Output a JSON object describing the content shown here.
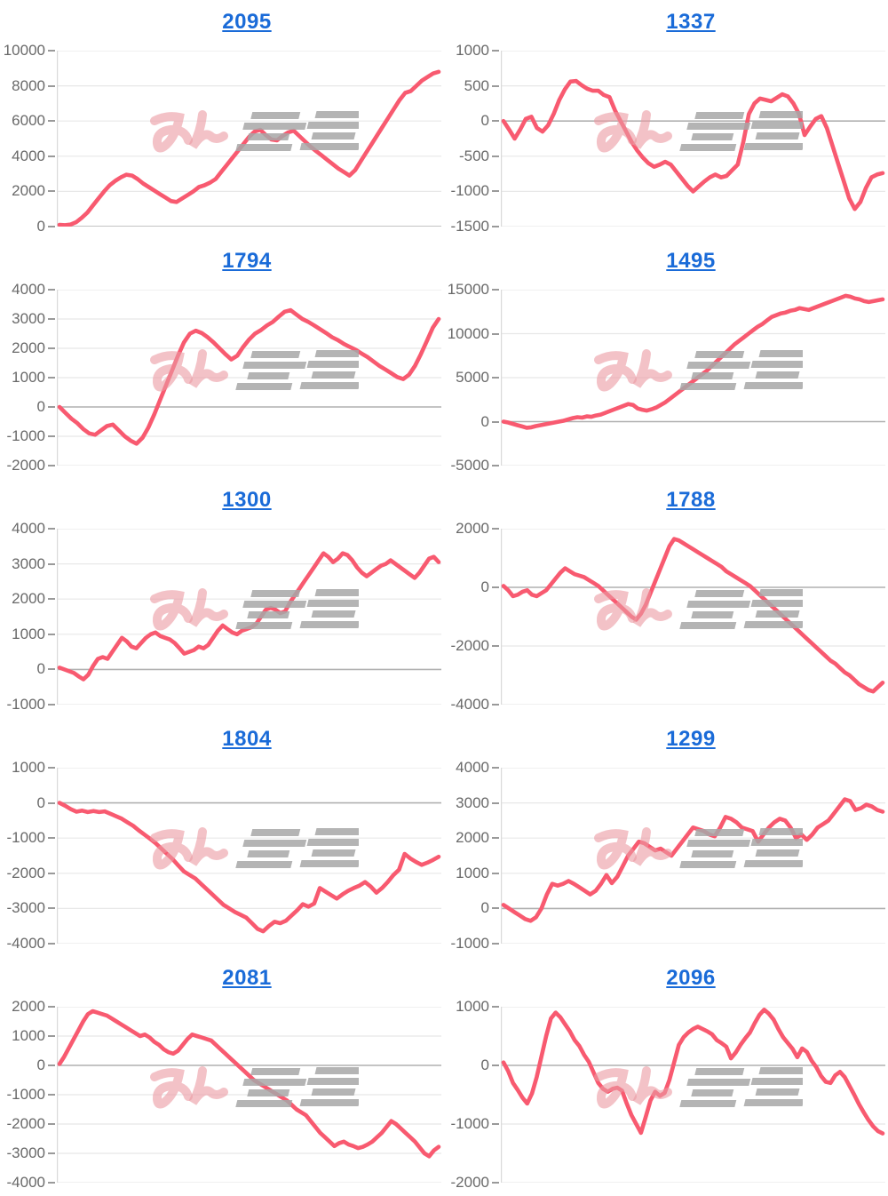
{
  "page": {
    "background": "#ffffff"
  },
  "watermark": {
    "text": "みんレポ",
    "pink": "#eb9aa1",
    "gray": "#a7a7a7"
  },
  "colors": {
    "line": "#f85a70",
    "grid_line": "#e8e8e8",
    "zero_line": "#b0b0b0",
    "axis_line": "#d9d9d9",
    "tick": "#9a9a9a",
    "label": "#696969",
    "title_link": "#1a6bd8"
  },
  "chart_data": [
    {
      "type": "line",
      "title": "2095",
      "xlabel": "",
      "ylabel": "",
      "ylim": [
        0,
        10000
      ],
      "yticks": [
        10000,
        8000,
        6000,
        4000,
        2000,
        0
      ],
      "grid": true,
      "legend": "none",
      "values": [
        100,
        80,
        120,
        250,
        500,
        800,
        1200,
        1600,
        2000,
        2350,
        2600,
        2800,
        2950,
        2900,
        2700,
        2450,
        2250,
        2050,
        1850,
        1650,
        1450,
        1400,
        1600,
        1800,
        2000,
        2250,
        2350,
        2500,
        2700,
        3100,
        3500,
        3900,
        4300,
        4700,
        5100,
        5400,
        5500,
        5200,
        4950,
        4900,
        5150,
        5350,
        5450,
        5150,
        4850,
        4550,
        4300,
        4050,
        3800,
        3550,
        3300,
        3100,
        2900,
        3200,
        3700,
        4200,
        4700,
        5200,
        5700,
        6200,
        6700,
        7200,
        7600,
        7700,
        8000,
        8300,
        8500,
        8700,
        8800
      ]
    },
    {
      "type": "line",
      "title": "1337",
      "xlabel": "",
      "ylabel": "",
      "ylim": [
        -1500,
        1000
      ],
      "yticks": [
        1000,
        500,
        0,
        -500,
        -1000,
        -1500
      ],
      "grid": true,
      "legend": "none",
      "values": [
        0,
        -120,
        -250,
        -120,
        30,
        60,
        -100,
        -150,
        -60,
        100,
        300,
        450,
        560,
        570,
        510,
        460,
        430,
        430,
        370,
        340,
        150,
        0,
        -150,
        -300,
        -420,
        -520,
        -600,
        -650,
        -620,
        -580,
        -620,
        -720,
        -820,
        -920,
        -1000,
        -930,
        -860,
        -800,
        -760,
        -800,
        -780,
        -700,
        -620,
        -300,
        100,
        250,
        320,
        300,
        280,
        330,
        380,
        350,
        250,
        100,
        -200,
        -80,
        30,
        70,
        -100,
        -350,
        -600,
        -850,
        -1100,
        -1250,
        -1150,
        -950,
        -800,
        -760,
        -740
      ]
    },
    {
      "type": "line",
      "title": "1794",
      "xlabel": "",
      "ylabel": "",
      "ylim": [
        -2000,
        4000
      ],
      "yticks": [
        4000,
        3000,
        2000,
        1000,
        0,
        -1000,
        -2000
      ],
      "grid": true,
      "legend": "none",
      "values": [
        0,
        -200,
        -400,
        -550,
        -750,
        -900,
        -950,
        -800,
        -650,
        -600,
        -800,
        -1000,
        -1150,
        -1250,
        -1050,
        -700,
        -250,
        250,
        750,
        1250,
        1750,
        2200,
        2500,
        2600,
        2520,
        2380,
        2200,
        2000,
        1800,
        1620,
        1750,
        2050,
        2300,
        2500,
        2620,
        2780,
        2900,
        3080,
        3250,
        3300,
        3150,
        3000,
        2900,
        2780,
        2650,
        2520,
        2380,
        2280,
        2150,
        2050,
        1950,
        1820,
        1700,
        1550,
        1400,
        1280,
        1150,
        1020,
        950,
        1100,
        1400,
        1800,
        2250,
        2700,
        3000
      ]
    },
    {
      "type": "line",
      "title": "1495",
      "xlabel": "",
      "ylabel": "",
      "ylim": [
        -5000,
        15000
      ],
      "yticks": [
        15000,
        10000,
        5000,
        0,
        -5000
      ],
      "grid": true,
      "legend": "none",
      "values": [
        0,
        -100,
        -250,
        -400,
        -550,
        -700,
        -650,
        -500,
        -400,
        -300,
        -200,
        -100,
        0,
        100,
        250,
        400,
        500,
        450,
        600,
        550,
        700,
        800,
        1000,
        1200,
        1400,
        1600,
        1800,
        2000,
        1900,
        1500,
        1350,
        1250,
        1400,
        1600,
        1900,
        2200,
        2600,
        3000,
        3400,
        3800,
        4200,
        4600,
        5000,
        5400,
        5800,
        6300,
        6800,
        7300,
        7800,
        8300,
        8800,
        9200,
        9600,
        10000,
        10400,
        10800,
        11100,
        11500,
        11900,
        12100,
        12300,
        12400,
        12600,
        12700,
        12900,
        12800,
        12700,
        12900,
        13100,
        13300,
        13500,
        13700,
        13900,
        14100,
        14300,
        14200,
        14000,
        13900,
        13700,
        13600,
        13700,
        13800,
        13900
      ]
    },
    {
      "type": "line",
      "title": "1300",
      "xlabel": "",
      "ylabel": "",
      "ylim": [
        -1000,
        4000
      ],
      "yticks": [
        4000,
        3000,
        2000,
        1000,
        0,
        -1000
      ],
      "grid": true,
      "legend": "none",
      "values": [
        50,
        0,
        -50,
        -100,
        -200,
        -280,
        -150,
        100,
        300,
        350,
        300,
        500,
        700,
        900,
        800,
        650,
        600,
        750,
        900,
        1000,
        1050,
        950,
        900,
        850,
        750,
        600,
        450,
        500,
        550,
        650,
        600,
        700,
        900,
        1100,
        1250,
        1150,
        1050,
        1000,
        1100,
        1150,
        1200,
        1300,
        1500,
        1700,
        1750,
        1700,
        1600,
        1650,
        1900,
        2100,
        2300,
        2500,
        2700,
        2900,
        3100,
        3300,
        3200,
        3050,
        3150,
        3300,
        3250,
        3100,
        2900,
        2750,
        2650,
        2750,
        2850,
        2950,
        3000,
        3100,
        3000,
        2900,
        2800,
        2700,
        2600,
        2750,
        2950,
        3150,
        3200,
        3050
      ]
    },
    {
      "type": "line",
      "title": "1788",
      "xlabel": "",
      "ylabel": "",
      "ylim": [
        -4000,
        2000
      ],
      "yticks": [
        2000,
        0,
        -2000,
        -4000
      ],
      "grid": true,
      "legend": "none",
      "values": [
        50,
        -100,
        -300,
        -250,
        -150,
        -100,
        -250,
        -300,
        -200,
        -100,
        100,
        300,
        500,
        650,
        550,
        450,
        400,
        350,
        250,
        150,
        50,
        -100,
        -250,
        -400,
        -550,
        -700,
        -850,
        -1000,
        -1100,
        -900,
        -600,
        -200,
        200,
        600,
        1000,
        1400,
        1650,
        1600,
        1500,
        1400,
        1300,
        1200,
        1100,
        1000,
        900,
        800,
        700,
        550,
        450,
        350,
        250,
        150,
        50,
        -100,
        -250,
        -400,
        -550,
        -700,
        -850,
        -1000,
        -1150,
        -1300,
        -1450,
        -1600,
        -1750,
        -1900,
        -2050,
        -2200,
        -2350,
        -2500,
        -2600,
        -2750,
        -2900,
        -3000,
        -3150,
        -3300,
        -3400,
        -3500,
        -3550,
        -3400,
        -3250
      ]
    },
    {
      "type": "line",
      "title": "1804",
      "xlabel": "",
      "ylabel": "",
      "ylim": [
        -4000,
        1000
      ],
      "yticks": [
        1000,
        0,
        -1000,
        -2000,
        -3000,
        -4000
      ],
      "grid": true,
      "legend": "none",
      "values": [
        0,
        -80,
        -180,
        -250,
        -220,
        -260,
        -230,
        -260,
        -240,
        -310,
        -380,
        -450,
        -550,
        -650,
        -780,
        -900,
        -1020,
        -1150,
        -1300,
        -1450,
        -1600,
        -1780,
        -1950,
        -2050,
        -2150,
        -2300,
        -2450,
        -2600,
        -2750,
        -2900,
        -3000,
        -3100,
        -3180,
        -3260,
        -3420,
        -3580,
        -3650,
        -3500,
        -3380,
        -3420,
        -3350,
        -3200,
        -3050,
        -2880,
        -2950,
        -2860,
        -2420,
        -2520,
        -2620,
        -2720,
        -2600,
        -2500,
        -2420,
        -2350,
        -2250,
        -2380,
        -2550,
        -2420,
        -2250,
        -2050,
        -1900,
        -1450,
        -1580,
        -1680,
        -1760,
        -1700,
        -1620,
        -1530
      ]
    },
    {
      "type": "line",
      "title": "1299",
      "xlabel": "",
      "ylabel": "",
      "ylim": [
        -1000,
        4000
      ],
      "yticks": [
        4000,
        3000,
        2000,
        1000,
        0,
        -1000
      ],
      "grid": true,
      "legend": "none",
      "values": [
        100,
        0,
        -100,
        -200,
        -300,
        -350,
        -250,
        0,
        400,
        700,
        650,
        700,
        780,
        700,
        600,
        500,
        400,
        500,
        700,
        950,
        720,
        900,
        1200,
        1500,
        1700,
        1900,
        1850,
        1750,
        1650,
        1700,
        1600,
        1500,
        1700,
        1900,
        2100,
        2300,
        2250,
        2200,
        2100,
        2050,
        2300,
        2600,
        2550,
        2450,
        2300,
        2250,
        2200,
        1900,
        2100,
        2300,
        2450,
        2550,
        2500,
        2300,
        2000,
        2100,
        1950,
        2100,
        2300,
        2400,
        2500,
        2700,
        2900,
        3100,
        3050,
        2800,
        2850,
        2950,
        2900,
        2800,
        2750
      ]
    },
    {
      "type": "line",
      "title": "2081",
      "xlabel": "",
      "ylabel": "",
      "ylim": [
        -4000,
        2000
      ],
      "yticks": [
        2000,
        1000,
        0,
        -1000,
        -2000,
        -3000,
        -4000
      ],
      "grid": true,
      "legend": "none",
      "values": [
        50,
        300,
        600,
        900,
        1200,
        1500,
        1750,
        1850,
        1800,
        1750,
        1700,
        1600,
        1500,
        1400,
        1300,
        1200,
        1100,
        1000,
        1050,
        950,
        800,
        700,
        550,
        450,
        400,
        500,
        700,
        900,
        1050,
        1000,
        950,
        900,
        850,
        700,
        550,
        400,
        250,
        100,
        -50,
        -200,
        -350,
        -500,
        -600,
        -700,
        -800,
        -900,
        -1000,
        -1100,
        -1200,
        -1350,
        -1500,
        -1600,
        -1700,
        -1900,
        -2100,
        -2300,
        -2450,
        -2600,
        -2750,
        -2650,
        -2600,
        -2700,
        -2750,
        -2820,
        -2780,
        -2700,
        -2600,
        -2450,
        -2300,
        -2100,
        -1900,
        -2000,
        -2150,
        -2300,
        -2450,
        -2600,
        -2800,
        -3000,
        -3100,
        -2900,
        -2780
      ]
    },
    {
      "type": "line",
      "title": "2096",
      "xlabel": "",
      "ylabel": "",
      "ylim": [
        -2000,
        1000
      ],
      "yticks": [
        1000,
        0,
        -1000,
        -2000
      ],
      "grid": true,
      "legend": "none",
      "values": [
        50,
        -100,
        -300,
        -420,
        -550,
        -650,
        -480,
        -200,
        150,
        500,
        800,
        900,
        820,
        700,
        580,
        430,
        330,
        180,
        60,
        -120,
        -300,
        -400,
        -450,
        -400,
        -380,
        -430,
        -650,
        -850,
        -1000,
        -1150,
        -880,
        -600,
        -450,
        -520,
        -470,
        -250,
        50,
        350,
        480,
        560,
        620,
        660,
        620,
        580,
        530,
        430,
        380,
        320,
        120,
        220,
        350,
        460,
        560,
        720,
        860,
        950,
        880,
        780,
        620,
        480,
        380,
        280,
        140,
        290,
        230,
        80,
        -30,
        -180,
        -280,
        -300,
        -170,
        -110,
        -200,
        -350,
        -500,
        -660,
        -800,
        -930,
        -1040,
        -1120,
        -1160
      ]
    }
  ]
}
